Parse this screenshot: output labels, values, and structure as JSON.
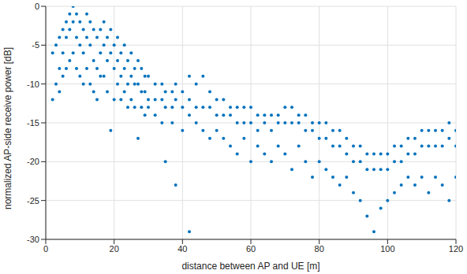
{
  "chart_data": {
    "type": "scatter",
    "x_label": "distance between AP and UE [m]",
    "y_label": "normalized AP-side receive power [dB]",
    "xlim": [
      0,
      120
    ],
    "xticks": [
      0,
      20,
      40,
      60,
      80,
      100,
      120
    ],
    "ylim": [
      -30,
      0
    ],
    "yticks": [
      -30,
      -25,
      -20,
      -15,
      -10,
      -5,
      0
    ],
    "grid": true,
    "color": "#0072bd",
    "marker": "circle",
    "x": [
      2,
      2,
      3,
      3,
      4,
      4,
      4,
      5,
      5,
      5,
      6,
      6,
      6,
      7,
      7,
      7,
      8,
      8,
      8,
      9,
      9,
      9,
      10,
      10,
      10,
      11,
      11,
      11,
      12,
      12,
      12,
      13,
      13,
      13,
      14,
      14,
      14,
      15,
      15,
      15,
      16,
      16,
      16,
      17,
      17,
      17,
      18,
      18,
      18,
      19,
      19,
      19,
      20,
      20,
      20,
      21,
      21,
      21,
      22,
      22,
      22,
      23,
      23,
      23,
      24,
      24,
      24,
      25,
      25,
      25,
      26,
      26,
      26,
      27,
      27,
      27,
      28,
      28,
      28,
      29,
      29,
      29,
      30,
      30,
      30,
      32,
      32,
      32,
      34,
      34,
      34,
      35,
      35,
      35,
      37,
      37,
      37,
      38,
      38,
      38,
      40,
      40,
      40,
      42,
      42,
      42,
      42,
      44,
      44,
      44,
      46,
      46,
      46,
      48,
      48,
      48,
      50,
      50,
      50,
      52,
      52,
      52,
      54,
      54,
      54,
      56,
      56,
      56,
      58,
      58,
      58,
      60,
      60,
      60,
      62,
      62,
      62,
      64,
      64,
      64,
      66,
      66,
      66,
      68,
      68,
      68,
      70,
      70,
      70,
      72,
      72,
      72,
      74,
      74,
      74,
      76,
      76,
      76,
      78,
      78,
      78,
      80,
      80,
      80,
      82,
      82,
      82,
      84,
      84,
      84,
      86,
      86,
      86,
      88,
      88,
      88,
      90,
      90,
      90,
      92,
      92,
      92,
      94,
      94,
      94,
      96,
      96,
      96,
      98,
      98,
      98,
      100,
      100,
      100,
      102,
      102,
      102,
      104,
      104,
      104,
      106,
      106,
      106,
      108,
      108,
      108,
      110,
      110,
      110,
      112,
      112,
      112,
      114,
      114,
      114,
      116,
      116,
      116,
      118,
      118,
      118,
      120,
      120,
      120
    ],
    "values": [
      -12,
      -6,
      -10,
      -5,
      -8,
      -4,
      -11,
      -6,
      -3,
      -9,
      -4,
      -2,
      -8,
      -3,
      -1,
      -7,
      -2,
      0,
      -6,
      -1,
      -4,
      -8,
      -2,
      -5,
      -9,
      -3,
      -6,
      -10,
      -1,
      -4,
      -8,
      -2,
      -5,
      -10,
      -3,
      -7,
      -11,
      -4,
      -8,
      -12,
      -3,
      -6,
      -9,
      -2,
      -5,
      -9,
      -4,
      -7,
      -11,
      -3,
      -6,
      -16,
      -5,
      -8,
      -12,
      -4,
      -7,
      -10,
      -6,
      -9,
      -12,
      -5,
      -8,
      -11,
      -7,
      -10,
      -13,
      -6,
      -9,
      -12,
      -8,
      -10,
      -13,
      -7,
      -10,
      -17,
      -8,
      -11,
      -13,
      -9,
      -11,
      -14,
      -9,
      -12,
      -13,
      -10,
      -12,
      -14,
      -10,
      -12,
      -15,
      -11,
      -13,
      -20,
      -11,
      -13,
      -15,
      -10,
      -12,
      -23,
      -11,
      -13,
      -16,
      -9,
      -12,
      -14,
      -29,
      -10,
      -13,
      -15,
      -9,
      -13,
      -16,
      -11,
      -13,
      -17,
      -12,
      -14,
      -16,
      -12,
      -14,
      -17,
      -13,
      -14,
      -18,
      -13,
      -15,
      -19,
      -13,
      -15,
      -17,
      -13,
      -15,
      -20,
      -14,
      -16,
      -18,
      -14,
      -15,
      -19,
      -14,
      -16,
      -20,
      -14,
      -15,
      -18,
      -13,
      -15,
      -19,
      -13,
      -15,
      -21,
      -14,
      -15,
      -18,
      -14,
      -16,
      -20,
      -15,
      -16,
      -22,
      -15,
      -17,
      -20,
      -15,
      -17,
      -21,
      -16,
      -18,
      -22,
      -16,
      -18,
      -23,
      -17,
      -19,
      -22,
      -18,
      -20,
      -24,
      -18,
      -20,
      -25,
      -19,
      -21,
      -27,
      -19,
      -21,
      -29,
      -19,
      -21,
      -26,
      -19,
      -21,
      -25,
      -18,
      -20,
      -24,
      -18,
      -20,
      -23,
      -17,
      -19,
      -22,
      -17,
      -19,
      -23,
      -16,
      -18,
      -22,
      -16,
      -18,
      -24,
      -16,
      -18,
      -22,
      -16,
      -18,
      -23,
      -15,
      -17,
      -25,
      -16,
      -18,
      -22
    ]
  }
}
